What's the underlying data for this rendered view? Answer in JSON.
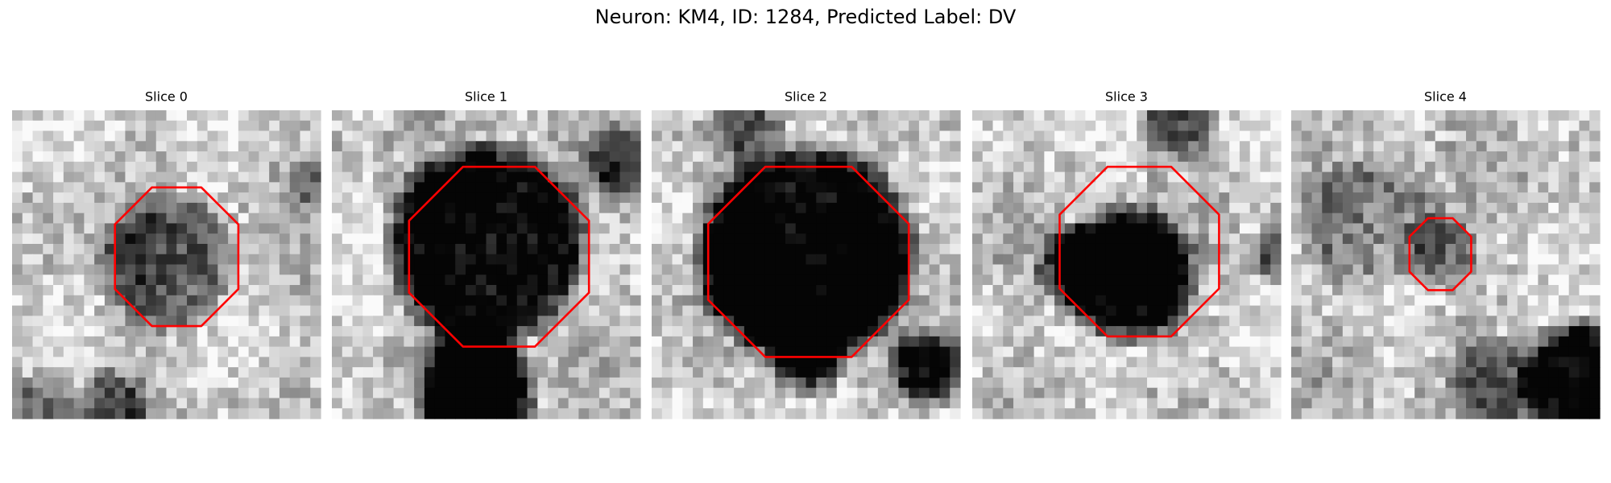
{
  "title": "Neuron: KM4, ID: 1284, Predicted Label: DV",
  "panels": [
    {
      "title": "Slice 0"
    },
    {
      "title": "Slice 1"
    },
    {
      "title": "Slice 2"
    },
    {
      "title": "Slice 3"
    },
    {
      "title": "Slice 4"
    }
  ]
}
